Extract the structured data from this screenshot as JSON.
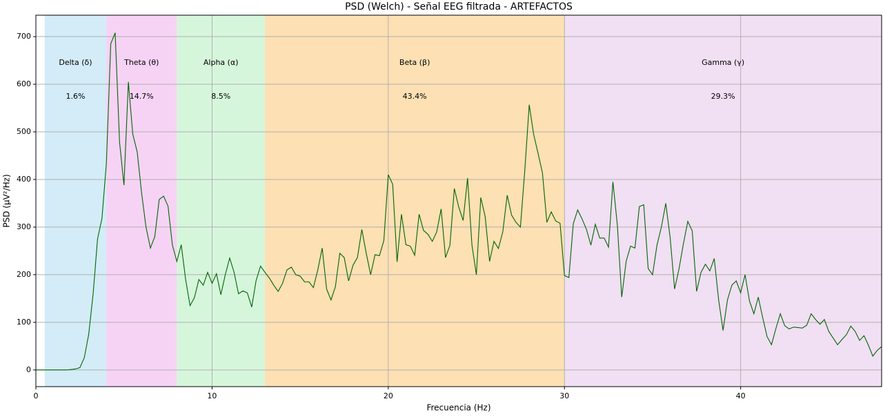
{
  "chart_data": {
    "type": "line",
    "title": "PSD (Welch) - Señal EEG filtrada - ARTEFACTOS",
    "xlabel": "Frecuencia (Hz)",
    "ylabel": "PSD (µV²/Hz)",
    "xlim": [
      0,
      48
    ],
    "ylim": [
      -35,
      745
    ],
    "xticks": [
      0,
      10,
      20,
      30,
      40
    ],
    "yticks": [
      0,
      100,
      200,
      300,
      400,
      500,
      600,
      700
    ],
    "grid": true,
    "bands": [
      {
        "name": "Delta (δ)",
        "range": [
          0.5,
          4
        ],
        "label": "1.6%",
        "color": "#d3ecf7"
      },
      {
        "name": "Theta (θ)",
        "range": [
          4,
          8
        ],
        "label": "14.7%",
        "color": "#f6d3f5"
      },
      {
        "name": "Alpha (α)",
        "range": [
          8,
          13
        ],
        "label": "8.5%",
        "color": "#d6f6dc"
      },
      {
        "name": "Beta (β)",
        "range": [
          13,
          30
        ],
        "label": "43.4%",
        "color": "#fde0b3"
      },
      {
        "name": "Gamma (γ)",
        "range": [
          30,
          48
        ],
        "label": "29.3%",
        "color": "#f1dff3"
      }
    ],
    "series": [
      {
        "color": "#006400",
        "x": [
          0,
          0.25,
          0.5,
          0.75,
          1,
          1.25,
          1.5,
          1.75,
          2,
          2.25,
          2.5,
          2.75,
          3,
          3.25,
          3.5,
          3.75,
          4,
          4.25,
          4.5,
          4.75,
          5,
          5.25,
          5.5,
          5.75,
          6,
          6.25,
          6.5,
          6.75,
          7,
          7.25,
          7.5,
          7.75,
          8,
          8.25,
          8.5,
          8.75,
          9,
          9.25,
          9.5,
          9.75,
          10,
          10.25,
          10.5,
          10.75,
          11,
          11.25,
          11.5,
          11.75,
          12,
          12.25,
          12.5,
          12.75,
          13,
          13.25,
          13.5,
          13.75,
          14,
          14.25,
          14.5,
          14.75,
          15,
          15.25,
          15.5,
          15.75,
          16,
          16.25,
          16.5,
          16.75,
          17,
          17.25,
          17.5,
          17.75,
          18,
          18.25,
          18.5,
          18.75,
          19,
          19.25,
          19.5,
          19.75,
          20,
          20.25,
          20.5,
          20.75,
          21,
          21.25,
          21.5,
          21.75,
          22,
          22.25,
          22.5,
          22.75,
          23,
          23.25,
          23.5,
          23.75,
          24,
          24.25,
          24.5,
          24.75,
          25,
          25.25,
          25.5,
          25.75,
          26,
          26.25,
          26.5,
          26.75,
          27,
          27.25,
          27.5,
          27.75,
          28,
          28.25,
          28.5,
          28.75,
          29,
          29.25,
          29.5,
          29.75,
          30,
          30.25,
          30.5,
          30.75,
          31,
          31.25,
          31.5,
          31.75,
          32,
          32.25,
          32.5,
          32.75,
          33,
          33.25,
          33.5,
          33.75,
          34,
          34.25,
          34.5,
          34.75,
          35,
          35.25,
          35.5,
          35.75,
          36,
          36.25,
          36.5,
          36.75,
          37,
          37.25,
          37.5,
          37.75,
          38,
          38.25,
          38.5,
          38.75,
          39,
          39.25,
          39.5,
          39.75,
          40,
          40.25,
          40.5,
          40.75,
          41,
          41.25,
          41.5,
          41.75,
          42,
          42.25,
          42.5,
          42.75,
          43,
          43.25,
          43.5,
          43.75,
          44,
          44.25,
          44.5,
          44.75,
          45,
          45.25,
          45.5,
          45.75,
          46,
          46.25,
          46.5,
          46.75,
          47,
          47.25,
          47.5,
          47.75,
          48
        ],
        "values": [
          0,
          0,
          0,
          0,
          0,
          0,
          0,
          0,
          1,
          2,
          5,
          26,
          75,
          160,
          275,
          318,
          433,
          685,
          708,
          478,
          388,
          605,
          495,
          458,
          372,
          300,
          256,
          280,
          358,
          365,
          344,
          262,
          228,
          263,
          190,
          135,
          152,
          190,
          178,
          205,
          182,
          202,
          158,
          200,
          235,
          205,
          160,
          166,
          162,
          132,
          188,
          218,
          205,
          193,
          178,
          165,
          182,
          210,
          216,
          200,
          197,
          185,
          185,
          173,
          210,
          256,
          170,
          147,
          175,
          245,
          236,
          187,
          220,
          236,
          295,
          245,
          200,
          242,
          240,
          272,
          410,
          390,
          227,
          327,
          263,
          260,
          241,
          327,
          293,
          285,
          270,
          290,
          338,
          236,
          262,
          381,
          342,
          314,
          403,
          262,
          200,
          362,
          322,
          228,
          270,
          255,
          290,
          367,
          325,
          310,
          300,
          420,
          557,
          495,
          455,
          414,
          310,
          332,
          313,
          308,
          198,
          194,
          307,
          336,
          317,
          295,
          262,
          306,
          277,
          277,
          258,
          395,
          305,
          153,
          228,
          260,
          256,
          343,
          347,
          213,
          200,
          262,
          300,
          350,
          277,
          170,
          212,
          265,
          312,
          292,
          165,
          205,
          222,
          208,
          234,
          147,
          83,
          147,
          178,
          187,
          162,
          200,
          145,
          118,
          153,
          110,
          70,
          53,
          87,
          118,
          93,
          86,
          90,
          89,
          88,
          94,
          118,
          106,
          96,
          106,
          81,
          67,
          53,
          64,
          74,
          92,
          81,
          62,
          72,
          52,
          29,
          41,
          49
        ]
      }
    ]
  }
}
